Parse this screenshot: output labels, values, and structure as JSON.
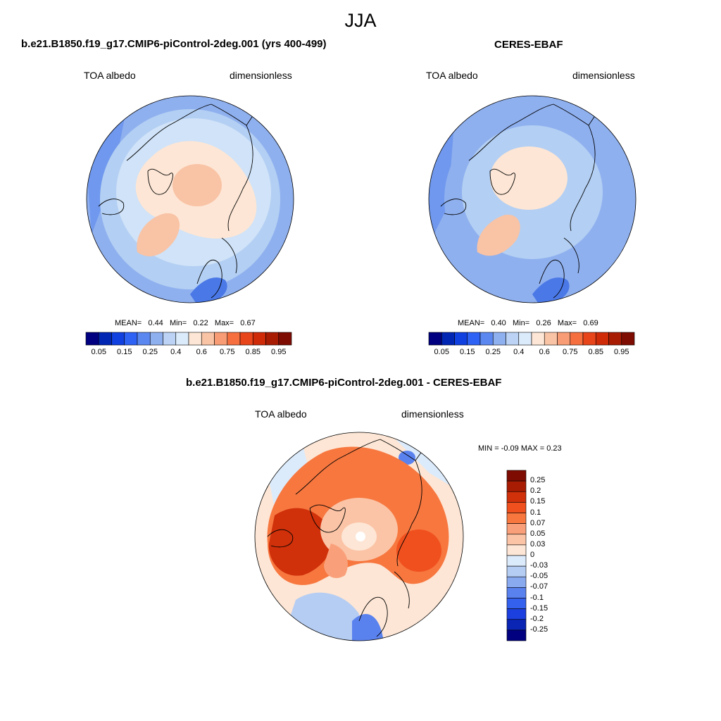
{
  "page": {
    "title": "JJA"
  },
  "panels": {
    "model": {
      "title": "b.e21.B1850.f19_g17.CMIP6-piControl-2deg.001 (yrs 400-499)",
      "left_label": "TOA albedo",
      "right_label": "dimensionless",
      "stats": {
        "mean_label": "MEAN=",
        "mean": "0.44",
        "min_label": "Min=",
        "min": "0.22",
        "max_label": "Max=",
        "max": "0.67"
      }
    },
    "obs": {
      "title": "CERES-EBAF",
      "left_label": "TOA albedo",
      "right_label": "dimensionless",
      "stats": {
        "mean_label": "MEAN=",
        "mean": "0.40",
        "min_label": "Min=",
        "min": "0.26",
        "max_label": "Max=",
        "max": "0.69"
      }
    },
    "diff": {
      "title": "b.e21.B1850.f19_g17.CMIP6-piControl-2deg.001 - CERES-EBAF",
      "left_label": "TOA albedo",
      "right_label": "dimensionless",
      "stats_text": "MIN =  -0.09 MAX =   0.23"
    }
  },
  "colorbars": {
    "albedo": {
      "colors": [
        "#000080",
        "#0026b3",
        "#1040e0",
        "#2e62f5",
        "#5a88f0",
        "#8fb0ef",
        "#bcd3f5",
        "#dcebfb",
        "#fde6d5",
        "#f9c3a5",
        "#f79c74",
        "#f56f3f",
        "#e8451a",
        "#cf2b09",
        "#a81c04",
        "#7e0c02"
      ],
      "tick_labels": [
        "0.05",
        "0.15",
        "0.25",
        "0.4",
        "0.6",
        "0.75",
        "0.85",
        "0.95"
      ]
    },
    "diff": {
      "colors": [
        "#7e0c02",
        "#a81c04",
        "#d0300a",
        "#f0501e",
        "#f7773f",
        "#f9a07a",
        "#fbc4a6",
        "#fde6d5",
        "#dcebfb",
        "#b5cdf3",
        "#8aaaf0",
        "#5a82ef",
        "#3561ef",
        "#1c40df",
        "#0a24b3",
        "#000080"
      ],
      "tick_labels": [
        "0.25",
        "0.2",
        "0.15",
        "0.1",
        "0.07",
        "0.05",
        "0.03",
        "0",
        "-0.03",
        "-0.05",
        "-0.07",
        "-0.1",
        "-0.15",
        "-0.2",
        "-0.25"
      ]
    }
  },
  "map_colors": {
    "model": {
      "ocean": "#d0e3f8",
      "mid": "#b3cff3",
      "outer": "#8fb0ef",
      "edge": "#6f98ee",
      "deep": "#4a78e6",
      "ice": "#fde6d5",
      "ice_hi": "#f9c3a5",
      "land": "#f9c3a5"
    },
    "obs": {
      "ocean": "#b3cff3",
      "mid": "#8fb0ef",
      "outer": "#8fb0ef",
      "edge": "#6f98ee",
      "deep": "#4a78e6",
      "ice": "#fde6d5",
      "ice_hi": "#fde6d5",
      "land": "#f9c3a5"
    },
    "diff": {
      "base": "#fde6d5",
      "warm1": "#fbc4a6",
      "warm2": "#f9a07a",
      "warm3": "#f7773f",
      "warm4": "#f0501e",
      "warm5": "#d0300a",
      "cool1": "#dcebfb",
      "cool2": "#b5cdf3",
      "cool3": "#5a82ef",
      "hole": "#ffffff"
    }
  }
}
